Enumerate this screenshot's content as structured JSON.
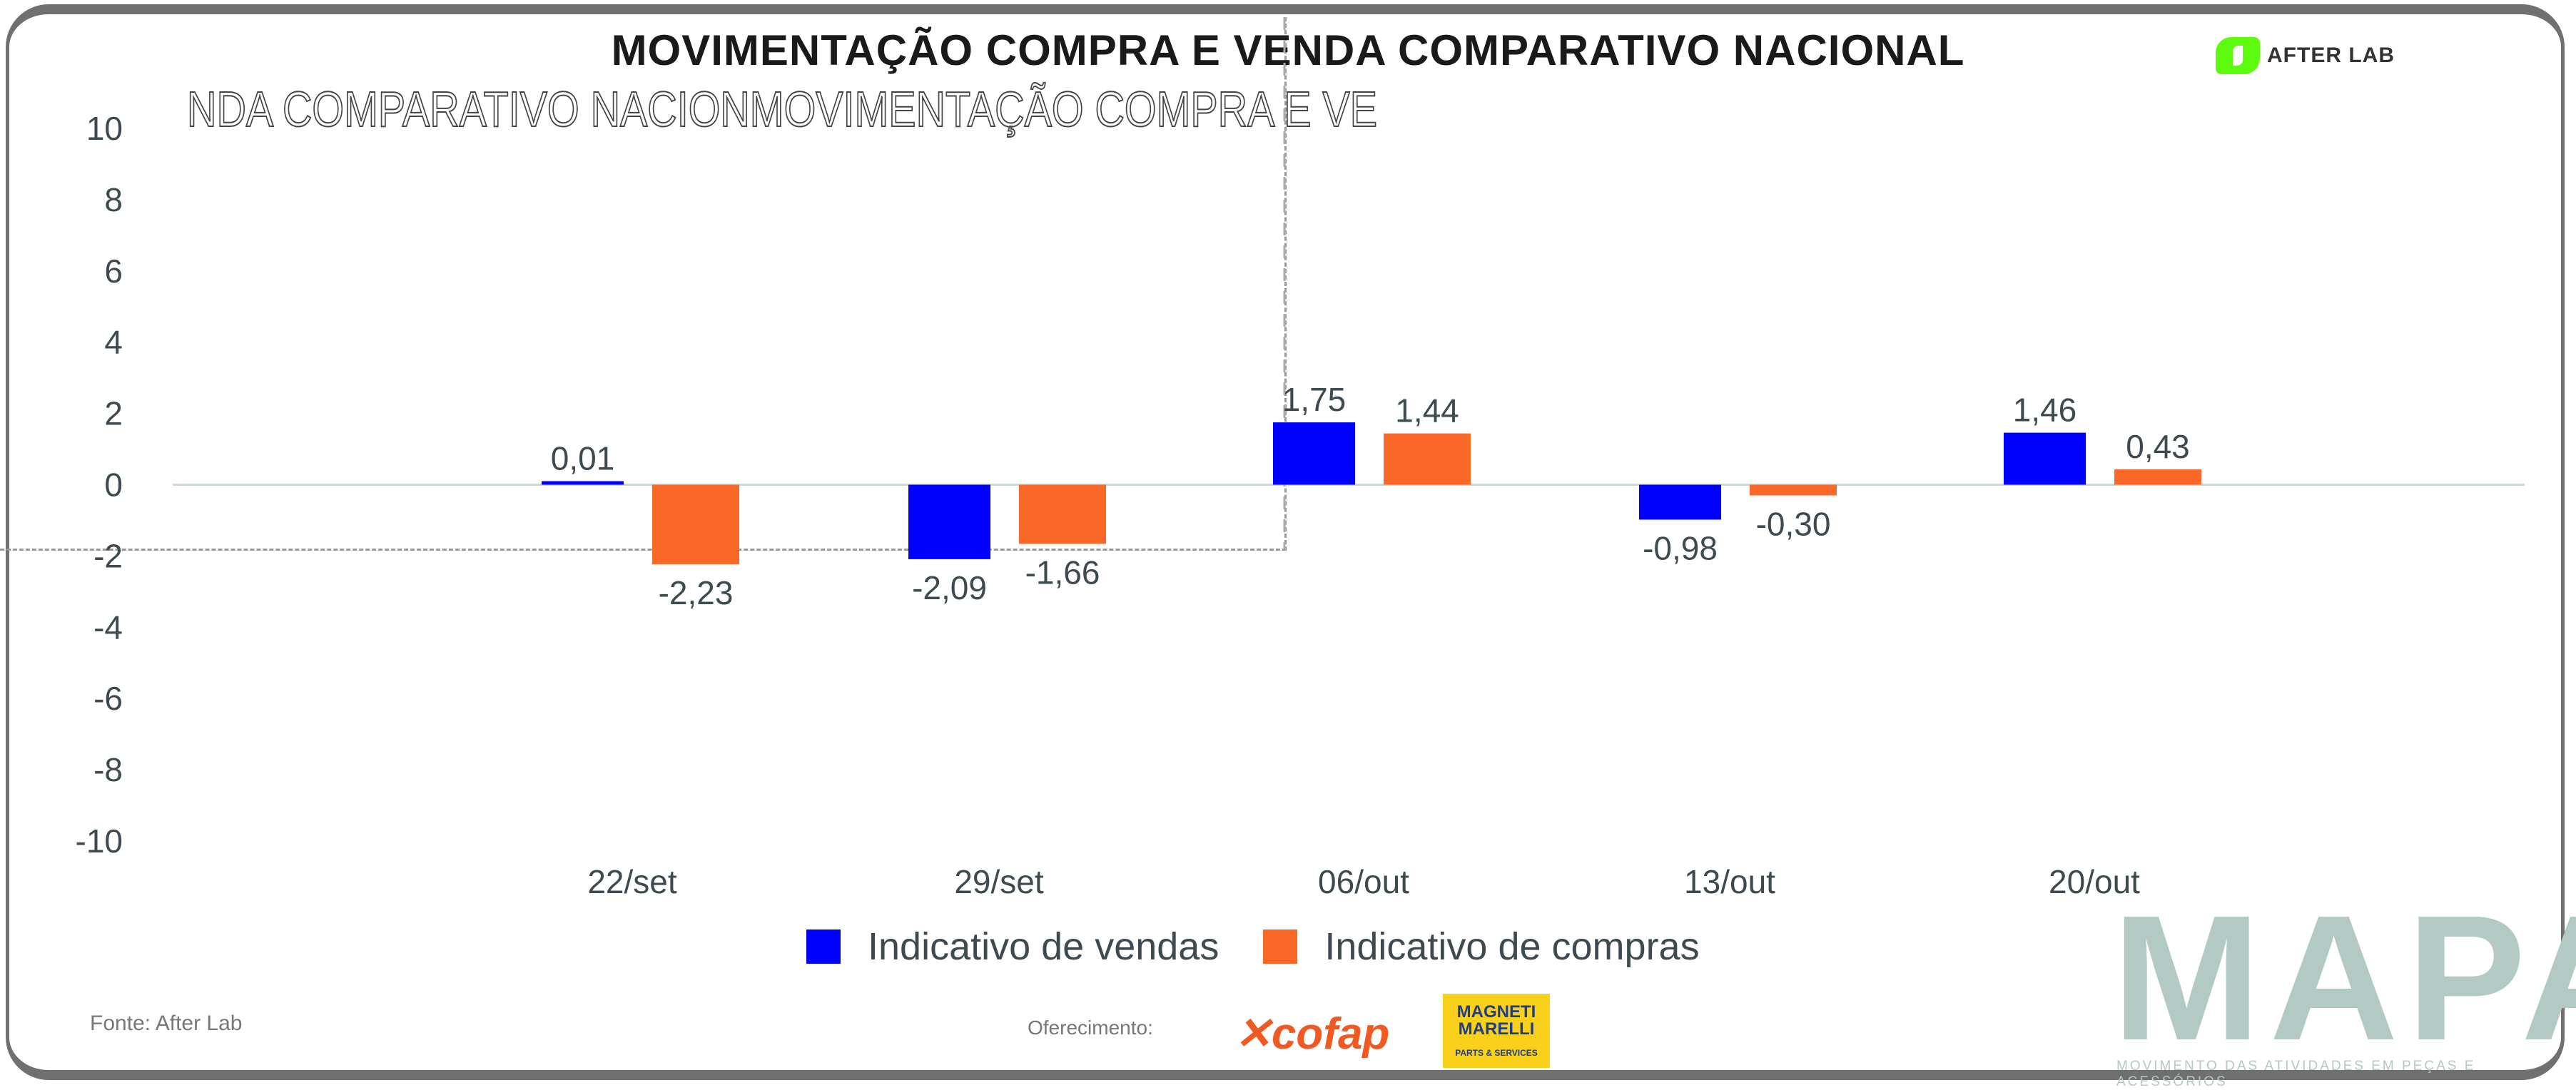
{
  "title": "MOVIMENTAÇÃO COMPRA E VENDA COMPARATIVO NACIONAL",
  "ghost_text": "NDA COMPARATIVO NACIONMOVIMENTAÇÃO COMPRA E VE",
  "brand_logo": "AFTER LAB",
  "chart_data": {
    "type": "bar",
    "categories": [
      "22/set",
      "29/set",
      "06/out",
      "13/out",
      "20/out"
    ],
    "series": [
      {
        "name": "Indicativo de vendas",
        "color": "#0000ff",
        "values": [
          0.01,
          -2.09,
          1.75,
          -0.98,
          1.46
        ],
        "labels": [
          "0,01",
          "-2,09",
          "1,75",
          "-0,98",
          "1,46"
        ]
      },
      {
        "name": "Indicativo de compras",
        "color": "#fa6828",
        "values": [
          -2.23,
          -1.66,
          1.44,
          -0.3,
          0.43
        ],
        "labels": [
          "-2,23",
          "-1,66",
          "1,44",
          "-0,30",
          "0,43"
        ]
      }
    ],
    "ylim": [
      -10,
      10
    ],
    "yticks": [
      "10",
      "8",
      "6",
      "4",
      "2",
      "0",
      "-2",
      "-4",
      "-6",
      "-8",
      "-10"
    ],
    "grid": false,
    "legend": "bottom"
  },
  "footer": {
    "source": "Fonte: After Lab",
    "offered_by": "Oferecimento:",
    "sponsor1": "cofap",
    "sponsor2_top": "MAGNETI MARELLI",
    "sponsor2_bottom": "PARTS & SERVICES",
    "mapa": "MAPA",
    "mapa_sub": "MOVIMENTO DAS ATIVIDADES EM PEÇAS E ACESSÓRIOS"
  }
}
